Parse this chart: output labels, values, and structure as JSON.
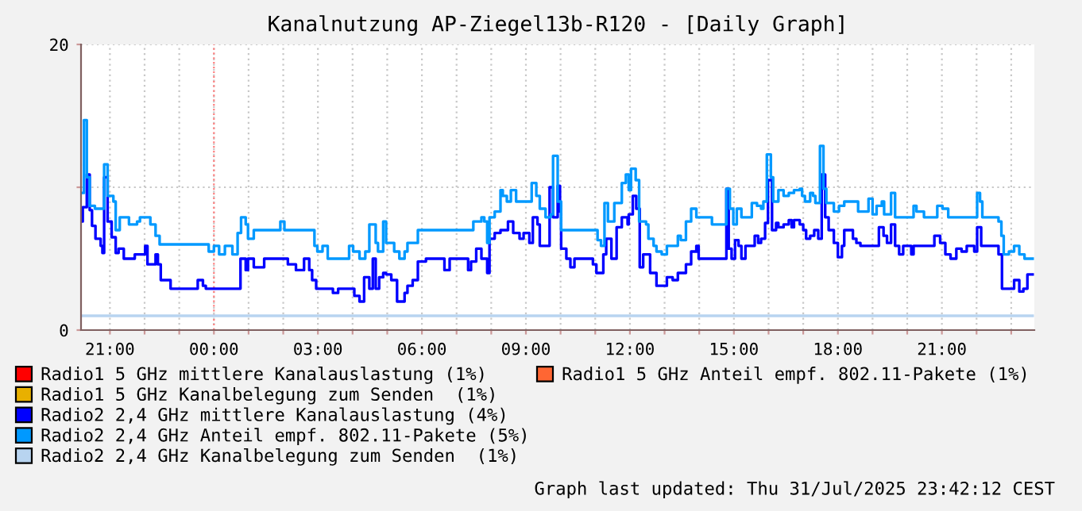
{
  "chart_data": {
    "type": "step",
    "title": "Kanalnutzung AP-Ziegel13b-R120 - [Daily Graph]",
    "xlim": [
      "2025-07-30T20:10",
      "2025-07-31T23:40"
    ],
    "ylim": [
      0,
      20
    ],
    "xticks": [
      {
        "value": "2025-07-30T21:00",
        "label": "21:00"
      },
      {
        "value": "2025-07-30T22:00",
        "label": null
      },
      {
        "value": "2025-07-30T23:00",
        "label": null
      },
      {
        "value": "2025-07-31T00:00",
        "label": "00:00"
      },
      {
        "value": "2025-07-31T01:00",
        "label": null
      },
      {
        "value": "2025-07-31T02:00",
        "label": null
      },
      {
        "value": "2025-07-31T03:00",
        "label": "03:00"
      },
      {
        "value": "2025-07-31T04:00",
        "label": null
      },
      {
        "value": "2025-07-31T05:00",
        "label": null
      },
      {
        "value": "2025-07-31T06:00",
        "label": "06:00"
      },
      {
        "value": "2025-07-31T07:00",
        "label": null
      },
      {
        "value": "2025-07-31T08:00",
        "label": null
      },
      {
        "value": "2025-07-31T09:00",
        "label": "09:00"
      },
      {
        "value": "2025-07-31T10:00",
        "label": null
      },
      {
        "value": "2025-07-31T11:00",
        "label": null
      },
      {
        "value": "2025-07-31T12:00",
        "label": "12:00"
      },
      {
        "value": "2025-07-31T13:00",
        "label": null
      },
      {
        "value": "2025-07-31T14:00",
        "label": null
      },
      {
        "value": "2025-07-31T15:00",
        "label": "15:00"
      },
      {
        "value": "2025-07-31T16:00",
        "label": null
      },
      {
        "value": "2025-07-31T17:00",
        "label": null
      },
      {
        "value": "2025-07-31T18:00",
        "label": "18:00"
      },
      {
        "value": "2025-07-31T19:00",
        "label": null
      },
      {
        "value": "2025-07-31T20:00",
        "label": null
      },
      {
        "value": "2025-07-31T21:00",
        "label": "21:00"
      },
      {
        "value": "2025-07-31T22:00",
        "label": null
      },
      {
        "value": "2025-07-31T23:00",
        "label": null
      }
    ],
    "yticks": [
      0,
      {
        "value": 10,
        "label": null
      },
      20
    ],
    "grid": true,
    "legend": "bottom",
    "line_style": "solid",
    "ref_lines": [
      {
        "axis": "x",
        "value": "2025-07-31T00:00",
        "color": "#ff8080",
        "line_style": "dotted"
      }
    ],
    "annotations": [
      "Graph last updated: Thu 31/Jul/2025 23:42:12 CEST"
    ],
    "series": [
      {
        "name": "Radio1 5 GHz mittlere Kanalauslastung (1%)",
        "color": "#ff0000"
      },
      {
        "name": "Radio1 5 GHz Anteil empf. 802.11-Pakete (1%)",
        "color": "#ff6633"
      },
      {
        "name": "Radio1 5 GHz Kanalbelegung zum Senden  (1%)",
        "color": "#e8b000"
      },
      {
        "name": "Radio2 2,4 GHz mittlere Kanalauslastung (4%)",
        "color": "#0000ff",
        "x": [
          "2025-07-30T20:11",
          "2025-07-30T20:13",
          "2025-07-30T20:20",
          "2025-07-30T20:25",
          "2025-07-30T20:29",
          "2025-07-30T20:35",
          "2025-07-30T20:44",
          "2025-07-30T20:47",
          "2025-07-30T20:50",
          "2025-07-30T20:56",
          "2025-07-30T21:03",
          "2025-07-30T21:10",
          "2025-07-30T21:15",
          "2025-07-30T21:24",
          "2025-07-30T21:43",
          "2025-07-30T22:01",
          "2025-07-30T22:05",
          "2025-07-30T22:19",
          "2025-07-30T22:23",
          "2025-07-30T22:28",
          "2025-07-30T22:37",
          "2025-07-30T22:45",
          "2025-07-30T23:32",
          "2025-07-30T23:41",
          "2025-07-30T23:46",
          "2025-07-31T00:46",
          "2025-07-31T00:55",
          "2025-07-31T00:59",
          "2025-07-31T01:09",
          "2025-07-31T01:27",
          "2025-07-31T02:08",
          "2025-07-31T02:22",
          "2025-07-31T02:36",
          "2025-07-31T02:45",
          "2025-07-31T02:50",
          "2025-07-31T02:57",
          "2025-07-31T03:26",
          "2025-07-31T03:35",
          "2025-07-31T04:03",
          "2025-07-31T04:12",
          "2025-07-31T04:20",
          "2025-07-31T04:29",
          "2025-07-31T04:35",
          "2025-07-31T04:40",
          "2025-07-31T04:46",
          "2025-07-31T04:53",
          "2025-07-31T04:58",
          "2025-07-31T05:07",
          "2025-07-31T05:17",
          "2025-07-31T05:30",
          "2025-07-31T05:35",
          "2025-07-31T05:44",
          "2025-07-31T05:53",
          "2025-07-31T06:07",
          "2025-07-31T06:39",
          "2025-07-31T06:48",
          "2025-07-31T07:20",
          "2025-07-31T07:25",
          "2025-07-31T07:34",
          "2025-07-31T07:43",
          "2025-07-31T07:53",
          "2025-07-31T07:57",
          "2025-07-31T08:06",
          "2025-07-31T08:16",
          "2025-07-31T08:29",
          "2025-07-31T08:38",
          "2025-07-31T08:49",
          "2025-07-31T08:56",
          "2025-07-31T09:06",
          "2025-07-31T09:12",
          "2025-07-31T09:20",
          "2025-07-31T09:24",
          "2025-07-31T09:41",
          "2025-07-31T09:47",
          "2025-07-31T09:55",
          "2025-07-31T09:59",
          "2025-07-31T10:01",
          "2025-07-31T10:10",
          "2025-07-31T10:17",
          "2025-07-31T10:24",
          "2025-07-31T10:56",
          "2025-07-31T11:02",
          "2025-07-31T11:14",
          "2025-07-31T11:19",
          "2025-07-31T11:28",
          "2025-07-31T11:37",
          "2025-07-31T11:46",
          "2025-07-31T11:56",
          "2025-07-31T11:58",
          "2025-07-31T12:05",
          "2025-07-31T12:11",
          "2025-07-31T12:17",
          "2025-07-31T12:23",
          "2025-07-31T12:35",
          "2025-07-31T12:46",
          "2025-07-31T13:04",
          "2025-07-31T13:14",
          "2025-07-31T13:23",
          "2025-07-31T13:37",
          "2025-07-31T13:46",
          "2025-07-31T13:55",
          "2025-07-31T13:59",
          "2025-07-31T14:47",
          "2025-07-31T14:51",
          "2025-07-31T14:56",
          "2025-07-31T15:02",
          "2025-07-31T15:08",
          "2025-07-31T15:13",
          "2025-07-31T15:20",
          "2025-07-31T15:36",
          "2025-07-31T15:42",
          "2025-07-31T15:47",
          "2025-07-31T15:54",
          "2025-07-31T15:59",
          "2025-07-31T16:06",
          "2025-07-31T16:13",
          "2025-07-31T16:17",
          "2025-07-31T16:26",
          "2025-07-31T16:35",
          "2025-07-31T16:40",
          "2025-07-31T16:44",
          "2025-07-31T16:54",
          "2025-07-31T17:00",
          "2025-07-31T17:05",
          "2025-07-31T17:12",
          "2025-07-31T17:19",
          "2025-07-31T17:26",
          "2025-07-31T17:32",
          "2025-07-31T17:38",
          "2025-07-31T17:44",
          "2025-07-31T17:53",
          "2025-07-31T18:00",
          "2025-07-31T18:07",
          "2025-07-31T18:11",
          "2025-07-31T18:26",
          "2025-07-31T18:32",
          "2025-07-31T18:39",
          "2025-07-31T19:11",
          "2025-07-31T19:19",
          "2025-07-31T19:25",
          "2025-07-31T19:32",
          "2025-07-31T19:39",
          "2025-07-31T19:46",
          "2025-07-31T19:53",
          "2025-07-31T20:07",
          "2025-07-31T20:11",
          "2025-07-31T20:47",
          "2025-07-31T20:57",
          "2025-07-31T21:06",
          "2025-07-31T21:15",
          "2025-07-31T21:25",
          "2025-07-31T21:34",
          "2025-07-31T21:43",
          "2025-07-31T21:56",
          "2025-07-31T22:01",
          "2025-07-31T22:08",
          "2025-07-31T22:38",
          "2025-07-31T22:44",
          "2025-07-31T23:05",
          "2025-07-31T23:14",
          "2025-07-31T23:21",
          "2025-07-31T23:28",
          "2025-07-31T23:37"
        ],
        "values": [
          7.6,
          8.6,
          10.9,
          8.4,
          7.3,
          6.4,
          5.9,
          5.4,
          10.7,
          7.6,
          6.5,
          5.4,
          5.7,
          5.0,
          5.3,
          5.9,
          4.6,
          5.3,
          4.6,
          3.5,
          3.5,
          2.9,
          3.5,
          3.1,
          2.9,
          5.0,
          4.2,
          5.0,
          4.4,
          5.0,
          4.6,
          4.2,
          5.0,
          4.2,
          3.5,
          2.9,
          2.6,
          2.9,
          2.4,
          2.0,
          3.7,
          2.9,
          5.0,
          2.9,
          3.7,
          4.0,
          3.9,
          3.5,
          2.0,
          2.6,
          3.1,
          3.5,
          4.8,
          5.0,
          4.2,
          5.0,
          4.2,
          4.8,
          5.7,
          5.0,
          4.0,
          6.4,
          6.8,
          7.0,
          7.6,
          6.8,
          6.4,
          6.8,
          6.1,
          7.9,
          7.4,
          5.9,
          10.0,
          7.9,
          10.1,
          8.3,
          5.7,
          5.0,
          4.4,
          5.0,
          4.6,
          4.0,
          5.3,
          6.4,
          5.0,
          7.2,
          7.9,
          7.4,
          8.1,
          9.4,
          8.5,
          4.4,
          5.3,
          4.0,
          3.1,
          3.7,
          3.5,
          4.0,
          4.6,
          5.5,
          5.9,
          5.0,
          9.9,
          5.7,
          5.0,
          6.3,
          5.9,
          5.0,
          5.9,
          6.6,
          6.1,
          6.4,
          7.5,
          10.5,
          7.0,
          7.5,
          7.2,
          7.4,
          7.7,
          7.2,
          7.7,
          7.4,
          7.0,
          6.4,
          6.6,
          7.0,
          6.4,
          10.9,
          7.9,
          7.0,
          6.1,
          5.1,
          5.9,
          7.0,
          6.4,
          6.1,
          5.9,
          7.2,
          6.6,
          6.1,
          7.4,
          5.9,
          5.3,
          5.9,
          5.3,
          5.9,
          6.6,
          6.1,
          5.3,
          5.0,
          5.7,
          5.5,
          5.9,
          5.5,
          7.2,
          5.9,
          5.3,
          2.9,
          3.5,
          2.7,
          2.9,
          3.9,
          3.9
        ]
      },
      {
        "name": "Radio2 2,4 GHz Anteil empf. 802.11-Pakete (5%)",
        "color": "#0099ff",
        "x": [
          "2025-07-30T20:11",
          "2025-07-30T20:15",
          "2025-07-30T20:20",
          "2025-07-30T20:25",
          "2025-07-30T20:34",
          "2025-07-30T20:50",
          "2025-07-30T20:56",
          "2025-07-30T21:06",
          "2025-07-30T21:10",
          "2025-07-30T21:17",
          "2025-07-30T21:33",
          "2025-07-30T21:47",
          "2025-07-30T21:52",
          "2025-07-30T22:10",
          "2025-07-30T22:19",
          "2025-07-30T22:26",
          "2025-07-30T23:51",
          "2025-07-31T00:00",
          "2025-07-31T00:09",
          "2025-07-31T00:19",
          "2025-07-31T00:32",
          "2025-07-31T00:41",
          "2025-07-31T00:47",
          "2025-07-31T00:55",
          "2025-07-31T00:59",
          "2025-07-31T01:09",
          "2025-07-31T01:55",
          "2025-07-31T02:02",
          "2025-07-31T02:54",
          "2025-07-31T02:59",
          "2025-07-31T03:08",
          "2025-07-31T03:17",
          "2025-07-31T03:54",
          "2025-07-31T04:01",
          "2025-07-31T04:12",
          "2025-07-31T04:22",
          "2025-07-31T04:29",
          "2025-07-31T04:40",
          "2025-07-31T04:44",
          "2025-07-31T04:53",
          "2025-07-31T04:58",
          "2025-07-31T05:12",
          "2025-07-31T05:21",
          "2025-07-31T05:30",
          "2025-07-31T05:35",
          "2025-07-31T05:53",
          "2025-07-31T07:25",
          "2025-07-31T07:29",
          "2025-07-31T07:43",
          "2025-07-31T07:48",
          "2025-07-31T07:53",
          "2025-07-31T07:57",
          "2025-07-31T08:06",
          "2025-07-31T08:16",
          "2025-07-31T08:20",
          "2025-07-31T08:27",
          "2025-07-31T08:34",
          "2025-07-31T08:43",
          "2025-07-31T09:10",
          "2025-07-31T09:18",
          "2025-07-31T09:24",
          "2025-07-31T09:34",
          "2025-07-31T09:43",
          "2025-07-31T09:47",
          "2025-07-31T09:55",
          "2025-07-31T10:01",
          "2025-07-31T11:04",
          "2025-07-31T11:10",
          "2025-07-31T11:16",
          "2025-07-31T11:22",
          "2025-07-31T11:33",
          "2025-07-31T11:46",
          "2025-07-31T11:53",
          "2025-07-31T11:58",
          "2025-07-31T12:02",
          "2025-07-31T12:10",
          "2025-07-31T12:16",
          "2025-07-31T12:28",
          "2025-07-31T12:32",
          "2025-07-31T12:41",
          "2025-07-31T12:46",
          "2025-07-31T12:55",
          "2025-07-31T13:04",
          "2025-07-31T13:23",
          "2025-07-31T13:28",
          "2025-07-31T13:37",
          "2025-07-31T13:46",
          "2025-07-31T13:55",
          "2025-07-31T14:22",
          "2025-07-31T14:47",
          "2025-07-31T14:53",
          "2025-07-31T14:59",
          "2025-07-31T15:05",
          "2025-07-31T15:13",
          "2025-07-31T15:31",
          "2025-07-31T15:40",
          "2025-07-31T15:47",
          "2025-07-31T15:51",
          "2025-07-31T15:57",
          "2025-07-31T16:04",
          "2025-07-31T16:08",
          "2025-07-31T16:17",
          "2025-07-31T16:26",
          "2025-07-31T16:35",
          "2025-07-31T16:44",
          "2025-07-31T16:54",
          "2025-07-31T16:58",
          "2025-07-31T17:03",
          "2025-07-31T17:12",
          "2025-07-31T17:17",
          "2025-07-31T17:21",
          "2025-07-31T17:29",
          "2025-07-31T17:35",
          "2025-07-31T17:40",
          "2025-07-31T17:53",
          "2025-07-31T18:02",
          "2025-07-31T18:11",
          "2025-07-31T18:35",
          "2025-07-31T18:53",
          "2025-07-31T19:00",
          "2025-07-31T19:07",
          "2025-07-31T19:16",
          "2025-07-31T19:20",
          "2025-07-31T19:32",
          "2025-07-31T19:39",
          "2025-07-31T20:11",
          "2025-07-31T20:16",
          "2025-07-31T20:29",
          "2025-07-31T20:52",
          "2025-07-31T21:01",
          "2025-07-31T21:11",
          "2025-07-31T22:01",
          "2025-07-31T22:06",
          "2025-07-31T22:10",
          "2025-07-31T22:38",
          "2025-07-31T22:43",
          "2025-07-31T22:47",
          "2025-07-31T22:56",
          "2025-07-31T23:05",
          "2025-07-31T23:14",
          "2025-07-31T23:23",
          "2025-07-31T23:37"
        ],
        "values": [
          9.6,
          14.7,
          10.7,
          8.7,
          8.5,
          11.6,
          9.4,
          9.0,
          7.0,
          7.9,
          7.4,
          7.6,
          7.9,
          7.4,
          6.6,
          6.0,
          5.5,
          5.9,
          5.3,
          5.9,
          5.3,
          6.8,
          7.9,
          7.4,
          6.4,
          7.0,
          7.6,
          7.0,
          5.9,
          5.5,
          5.9,
          5.0,
          5.9,
          5.5,
          5.0,
          5.5,
          7.4,
          6.1,
          5.5,
          7.6,
          6.1,
          5.5,
          5.0,
          5.5,
          6.1,
          7.0,
          7.0,
          7.6,
          7.9,
          7.6,
          6.1,
          7.9,
          8.3,
          9.8,
          9.4,
          9.0,
          9.8,
          9.0,
          10.3,
          9.4,
          8.5,
          7.9,
          8.1,
          12.2,
          9.0,
          7.0,
          6.3,
          5.9,
          8.9,
          7.6,
          8.9,
          10.3,
          10.9,
          9.8,
          11.3,
          10.5,
          7.6,
          7.4,
          6.4,
          5.9,
          5.5,
          5.3,
          5.9,
          6.6,
          6.3,
          7.6,
          8.5,
          7.9,
          7.4,
          9.9,
          8.5,
          7.4,
          8.5,
          7.9,
          8.9,
          8.7,
          8.5,
          9.0,
          12.3,
          10.7,
          9.0,
          9.8,
          9.4,
          9.6,
          9.8,
          9.9,
          9.4,
          9.0,
          9.6,
          9.4,
          8.9,
          12.9,
          9.9,
          8.9,
          8.3,
          8.7,
          9.0,
          8.3,
          9.2,
          8.1,
          8.7,
          9.0,
          8.1,
          9.6,
          7.9,
          8.7,
          8.3,
          7.9,
          8.7,
          8.5,
          7.9,
          9.6,
          9.0,
          7.9,
          7.6,
          6.6,
          5.3,
          5.5,
          5.9,
          5.3,
          5.0,
          5.0
        ]
      },
      {
        "name": "Radio2 2,4 GHz Kanalbelegung zum Senden  (1%)",
        "color": "#b8d4f0",
        "x": [
          "2025-07-30T20:10",
          "2025-07-31T23:37"
        ],
        "values": [
          1.0,
          1.0
        ]
      }
    ]
  }
}
